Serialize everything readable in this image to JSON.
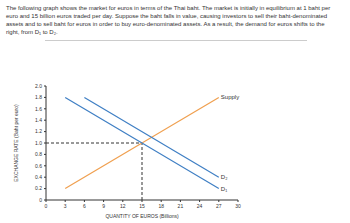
{
  "intro": "The following graph shows the market for euros in terms of the Thai baht. The market is initially in equilibrium at 1 baht per euro and 15 billion euros traded per day. Suppose the baht falls in value, causing investors to sell their baht-denominated assets and to sell baht for euros in order to buy euro-denominated assets. As a result, the demand for euros shifts to the right, from D₁ to D₂.",
  "chart_data": {
    "type": "line",
    "x_label": "QUANTITY OF EUROS (Billions)",
    "y_label": "EXCHANGE RATE (Baht per euro)",
    "xlim": [
      0,
      30
    ],
    "xticks": [
      0,
      3,
      6,
      9,
      12,
      15,
      18,
      21,
      24,
      27,
      30
    ],
    "ylim": [
      0,
      2
    ],
    "yticks": [
      0,
      0.2,
      0.4,
      0.6,
      0.8,
      {
        "value": 1,
        "label": "1.0"
      },
      1.2,
      1.4,
      1.6,
      1.8,
      {
        "value": 2,
        "label": "2.0"
      }
    ],
    "grid": false,
    "equilibrium": {
      "x": 15,
      "y": 1
    },
    "series": [
      {
        "name": "Supply",
        "color": "#f0a050",
        "x": [
          3,
          27
        ],
        "values": [
          0.2,
          1.8
        ]
      },
      {
        "name": "D₁",
        "color": "#3f7fc4",
        "x": [
          3,
          27
        ],
        "values": [
          1.8,
          0.2
        ]
      },
      {
        "name": "D₂",
        "color": "#3f7fc4",
        "x": [
          6,
          27
        ],
        "values": [
          1.8,
          0.4
        ]
      }
    ]
  }
}
